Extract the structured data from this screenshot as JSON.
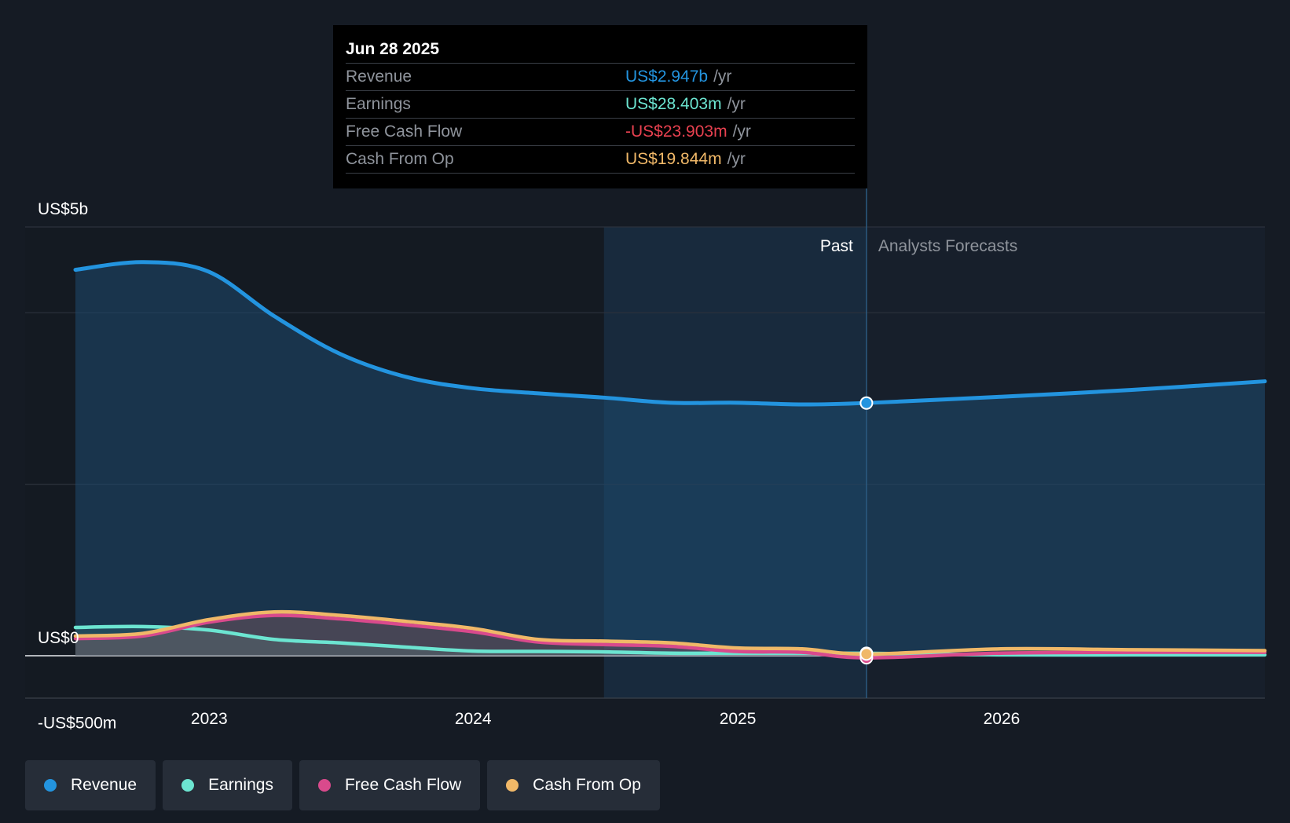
{
  "tooltip": {
    "date": "Jun 28 2025",
    "rows": [
      {
        "label": "Revenue",
        "value": "US$2.947b",
        "unit": "/yr",
        "color": "#2394df"
      },
      {
        "label": "Earnings",
        "value": "US$28.403m",
        "unit": "/yr",
        "color": "#6ce5d1"
      },
      {
        "label": "Free Cash Flow",
        "value": "-US$23.903m",
        "unit": "/yr",
        "color": "#e84150"
      },
      {
        "label": "Cash From Op",
        "value": "US$19.844m",
        "unit": "/yr",
        "color": "#f0b868"
      }
    ]
  },
  "regions": {
    "past": "Past",
    "forecast": "Analysts Forecasts"
  },
  "legend": [
    {
      "label": "Revenue",
      "color": "#2394df"
    },
    {
      "label": "Earnings",
      "color": "#6ce5d1"
    },
    {
      "label": "Free Cash Flow",
      "color": "#d94a8c"
    },
    {
      "label": "Cash From Op",
      "color": "#f0b868"
    }
  ],
  "chart_data": {
    "type": "area",
    "y_unit": "US$ millions",
    "ylim": [
      -500,
      5000
    ],
    "y_tick_labels": [
      {
        "value": 5000,
        "label": "US$5b"
      },
      {
        "value": 0,
        "label": "US$0"
      },
      {
        "value": -500,
        "label": "-US$500m"
      }
    ],
    "x_tick_labels": [
      "2023",
      "2024",
      "2025",
      "2026"
    ],
    "xlim": [
      "2022-06-30",
      "2026-12-31"
    ],
    "past_end": "2025-06-28",
    "highlight_start": "2024-06-30",
    "grid": true,
    "series": [
      {
        "name": "Revenue",
        "color": "#2394df",
        "points": [
          [
            "2022-06-30",
            4500
          ],
          [
            "2022-10-01",
            4590
          ],
          [
            "2022-12-31",
            4480
          ],
          [
            "2023-04-01",
            3960
          ],
          [
            "2023-07-01",
            3520
          ],
          [
            "2023-10-01",
            3250
          ],
          [
            "2023-12-31",
            3120
          ],
          [
            "2024-03-31",
            3060
          ],
          [
            "2024-06-30",
            3010
          ],
          [
            "2024-09-30",
            2950
          ],
          [
            "2024-12-31",
            2950
          ],
          [
            "2025-03-31",
            2930
          ],
          [
            "2025-06-28",
            2947
          ],
          [
            "2025-12-31",
            3020
          ],
          [
            "2026-06-30",
            3100
          ],
          [
            "2026-12-31",
            3200
          ]
        ]
      },
      {
        "name": "Earnings",
        "color": "#6ce5d1",
        "points": [
          [
            "2022-06-30",
            330
          ],
          [
            "2022-10-01",
            340
          ],
          [
            "2022-12-31",
            300
          ],
          [
            "2023-04-01",
            190
          ],
          [
            "2023-07-01",
            150
          ],
          [
            "2023-10-01",
            100
          ],
          [
            "2023-12-31",
            55
          ],
          [
            "2024-03-31",
            50
          ],
          [
            "2024-06-30",
            45
          ],
          [
            "2024-09-30",
            30
          ],
          [
            "2024-12-31",
            30
          ],
          [
            "2025-03-31",
            30
          ],
          [
            "2025-06-28",
            28.403
          ],
          [
            "2025-12-31",
            10
          ],
          [
            "2026-06-30",
            10
          ],
          [
            "2026-12-31",
            10
          ]
        ]
      },
      {
        "name": "Free Cash Flow",
        "color": "#d94a8c",
        "points": [
          [
            "2022-06-30",
            200
          ],
          [
            "2022-10-01",
            230
          ],
          [
            "2022-12-31",
            390
          ],
          [
            "2023-04-01",
            470
          ],
          [
            "2023-07-01",
            430
          ],
          [
            "2023-10-01",
            360
          ],
          [
            "2023-12-31",
            280
          ],
          [
            "2024-03-31",
            160
          ],
          [
            "2024-06-30",
            130
          ],
          [
            "2024-09-30",
            110
          ],
          [
            "2024-12-31",
            50
          ],
          [
            "2025-03-31",
            40
          ],
          [
            "2025-06-28",
            -23.903
          ],
          [
            "2025-12-31",
            30
          ],
          [
            "2026-06-30",
            40
          ],
          [
            "2026-12-31",
            40
          ]
        ]
      },
      {
        "name": "Cash From Op",
        "color": "#f0b868",
        "points": [
          [
            "2022-06-30",
            230
          ],
          [
            "2022-10-01",
            260
          ],
          [
            "2022-12-31",
            420
          ],
          [
            "2023-04-01",
            510
          ],
          [
            "2023-07-01",
            470
          ],
          [
            "2023-10-01",
            400
          ],
          [
            "2023-12-31",
            320
          ],
          [
            "2024-03-31",
            190
          ],
          [
            "2024-06-30",
            170
          ],
          [
            "2024-09-30",
            150
          ],
          [
            "2024-12-31",
            90
          ],
          [
            "2025-03-31",
            80
          ],
          [
            "2025-06-28",
            19.844
          ],
          [
            "2025-12-31",
            80
          ],
          [
            "2026-06-30",
            70
          ],
          [
            "2026-12-31",
            60
          ]
        ]
      }
    ]
  }
}
